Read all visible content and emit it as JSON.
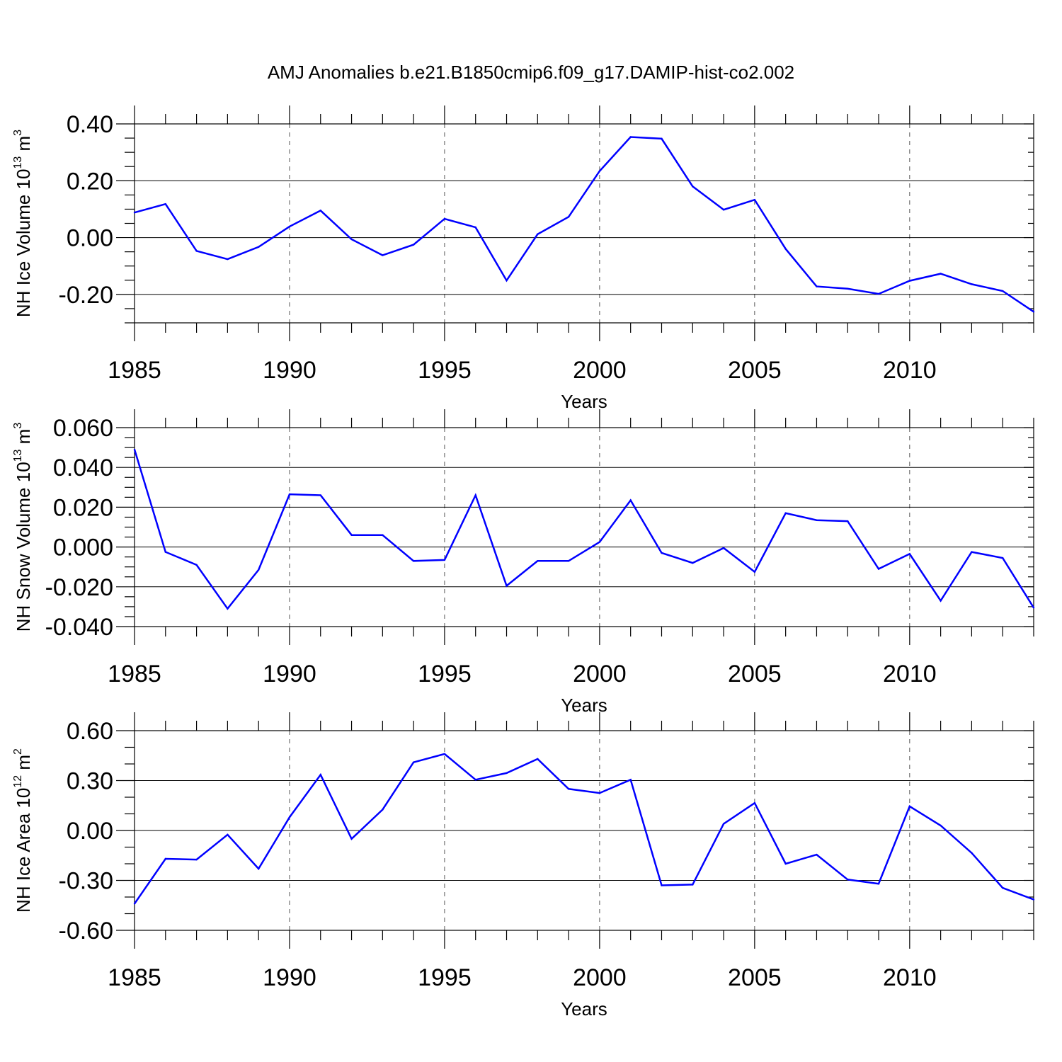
{
  "title": "AMJ Anomalies b.e21.B1850cmip6.f09_g17.DAMIP-hist-co2.002",
  "colors": {
    "series": "#0000ff",
    "axis": "#000000",
    "grid": "#555555"
  },
  "chart_data": [
    {
      "type": "line",
      "ylabel": {
        "main": "NH Ice Volume 10",
        "sup": "13",
        "unit_base": " m",
        "unit_sup": "3"
      },
      "xlabel": "Years",
      "xlim": [
        1985,
        2014
      ],
      "ylim": [
        -0.3,
        0.4
      ],
      "yticks": [
        -0.2,
        0.0,
        0.2,
        0.4
      ],
      "ytick_labels": [
        "-0.20",
        "0.00",
        "0.20",
        "0.40"
      ],
      "yminor_step": 0.05,
      "xticks": [
        1985,
        1990,
        1995,
        2000,
        2005,
        2010
      ],
      "xtick_labels": [
        "1985",
        "1990",
        "1995",
        "2000",
        "2005",
        "2010"
      ],
      "grid": "vertical dashed at major x ticks",
      "x": [
        1985,
        1986,
        1987,
        1988,
        1989,
        1990,
        1991,
        1992,
        1993,
        1994,
        1995,
        1996,
        1997,
        1998,
        1999,
        2000,
        2001,
        2002,
        2003,
        2004,
        2005,
        2006,
        2007,
        2008,
        2009,
        2010,
        2011,
        2012,
        2013,
        2014
      ],
      "values": [
        0.088,
        0.118,
        -0.047,
        -0.076,
        -0.033,
        0.039,
        0.095,
        -0.006,
        -0.062,
        -0.025,
        0.066,
        0.036,
        -0.151,
        0.012,
        0.073,
        0.234,
        0.354,
        0.348,
        0.18,
        0.098,
        0.133,
        -0.04,
        -0.172,
        -0.18,
        -0.198,
        -0.152,
        -0.127,
        -0.164,
        -0.188,
        -0.261
      ]
    },
    {
      "type": "line",
      "ylabel": {
        "main": "NH Snow Volume 10",
        "sup": "13",
        "unit_base": " m",
        "unit_sup": "3"
      },
      "xlabel": "Years",
      "xlim": [
        1985,
        2014
      ],
      "ylim": [
        -0.04,
        0.06
      ],
      "yticks": [
        -0.04,
        -0.02,
        0.0,
        0.02,
        0.04,
        0.06
      ],
      "ytick_labels": [
        "-0.040",
        "-0.020",
        "0.000",
        "0.020",
        "0.040",
        "0.060"
      ],
      "yminor_step": 0.005,
      "xticks": [
        1985,
        1990,
        1995,
        2000,
        2005,
        2010
      ],
      "xtick_labels": [
        "1985",
        "1990",
        "1995",
        "2000",
        "2005",
        "2010"
      ],
      "grid": "vertical dashed at major x ticks",
      "x": [
        1985,
        1986,
        1987,
        1988,
        1989,
        1990,
        1991,
        1992,
        1993,
        1994,
        1995,
        1996,
        1997,
        1998,
        1999,
        2000,
        2001,
        2002,
        2003,
        2004,
        2005,
        2006,
        2007,
        2008,
        2009,
        2010,
        2011,
        2012,
        2013,
        2014
      ],
      "values": [
        0.049,
        -0.0025,
        -0.009,
        -0.031,
        -0.0115,
        0.0265,
        0.026,
        0.006,
        0.006,
        -0.007,
        -0.0065,
        0.026,
        -0.0195,
        -0.007,
        -0.007,
        0.0025,
        0.0235,
        -0.003,
        -0.008,
        -0.0005,
        -0.0125,
        0.017,
        0.0135,
        0.013,
        -0.011,
        -0.0035,
        -0.027,
        -0.0025,
        -0.0055,
        -0.0305
      ]
    },
    {
      "type": "line",
      "ylabel": {
        "main": "NH Ice Area 10",
        "sup": "12",
        "unit_base": " m",
        "unit_sup": "2"
      },
      "xlabel": "Years",
      "xlim": [
        1985,
        2014
      ],
      "ylim": [
        -0.6,
        0.6
      ],
      "yticks": [
        -0.6,
        -0.3,
        0.0,
        0.3,
        0.6
      ],
      "ytick_labels": [
        "-0.60",
        "-0.30",
        "0.00",
        "0.30",
        "0.60"
      ],
      "yminor_step": 0.1,
      "xticks": [
        1985,
        1990,
        1995,
        2000,
        2005,
        2010
      ],
      "xtick_labels": [
        "1985",
        "1990",
        "1995",
        "2000",
        "2005",
        "2010"
      ],
      "grid": "vertical dashed at major x ticks",
      "x": [
        1985,
        1986,
        1987,
        1988,
        1989,
        1990,
        1991,
        1992,
        1993,
        1994,
        1995,
        1996,
        1997,
        1998,
        1999,
        2000,
        2001,
        2002,
        2003,
        2004,
        2005,
        2006,
        2007,
        2008,
        2009,
        2010,
        2011,
        2012,
        2013,
        2014
      ],
      "values": [
        -0.44,
        -0.17,
        -0.175,
        -0.025,
        -0.23,
        0.08,
        0.335,
        -0.05,
        0.125,
        0.41,
        0.46,
        0.305,
        0.345,
        0.43,
        0.25,
        0.225,
        0.305,
        -0.33,
        -0.325,
        0.04,
        0.165,
        -0.2,
        -0.145,
        -0.295,
        -0.32,
        0.145,
        0.03,
        -0.135,
        -0.345,
        -0.415
      ]
    }
  ]
}
